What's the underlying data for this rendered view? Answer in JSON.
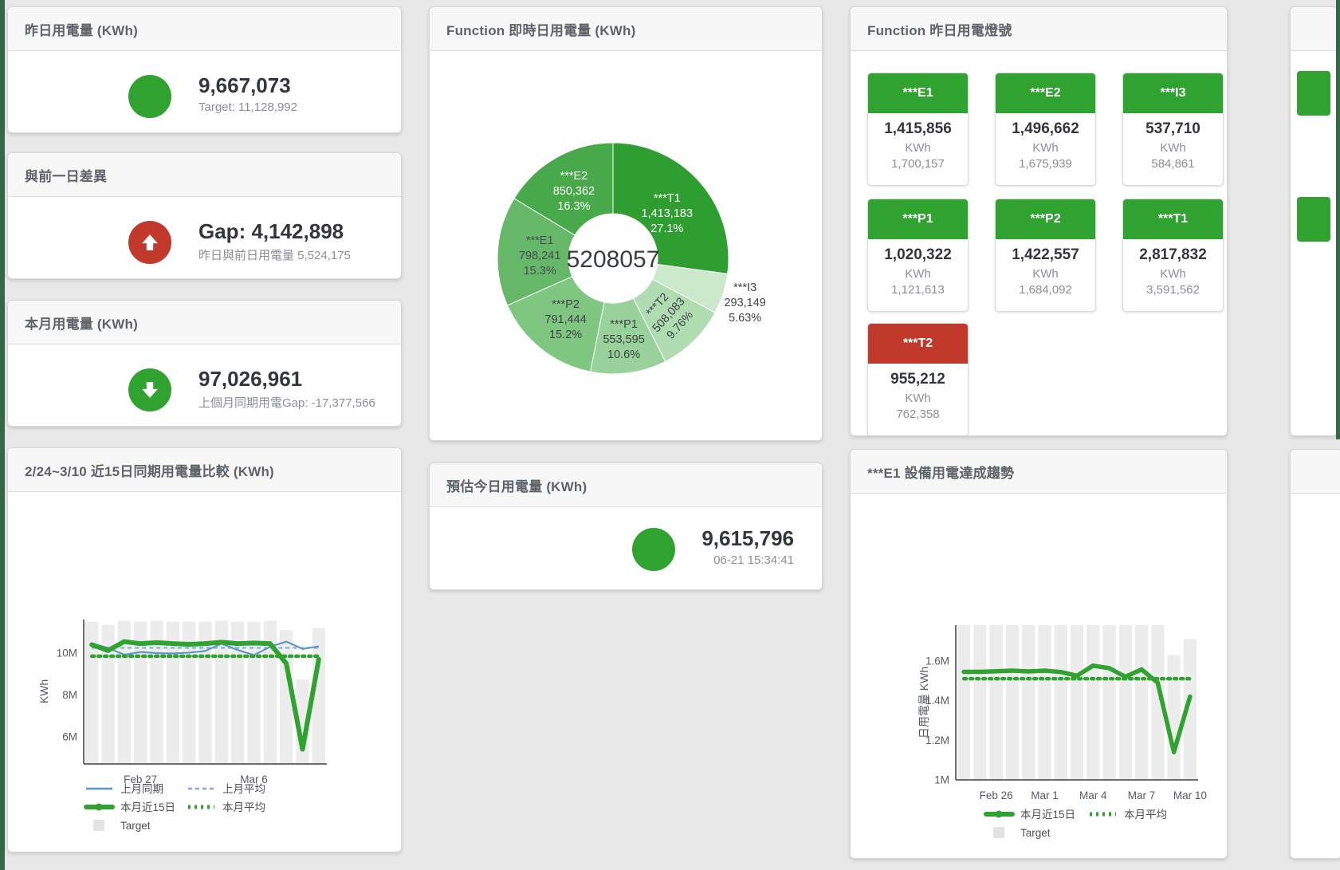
{
  "colors": {
    "page_bg": "#e8e8e8",
    "edge_green": "#356844",
    "card_border": "#d8d8d8",
    "header_bg": "#f7f7f8",
    "title_text": "#5e6269",
    "value_text": "#33363c",
    "sub_text": "#8b8e96",
    "green": "#2fa22f",
    "red": "#c0392b",
    "bar_gray": "#ececec",
    "blue_line": "#5f94c9",
    "blue_dash": "#7aaede",
    "axis": "#3f3f3f",
    "tick_text": "#565a61",
    "legend_text": "#4b4f55"
  },
  "stat_cards": {
    "yesterday": {
      "title": "昨日用電量 (KWh)",
      "value": "9,667,073",
      "subtext": "Target: 11,128,992",
      "indicator": "circle-icon",
      "status": "green"
    },
    "gap": {
      "title": "與前一日差異",
      "value": "Gap: 4,142,898",
      "subtext": "昨日與前日用電量 5,524,175",
      "indicator": "arrow-up-icon",
      "status": "red"
    },
    "month": {
      "title": "本月用電量 (KWh)",
      "value": "97,026,961",
      "subtext": "上個月同期用電Gap: -17,377,566",
      "indicator": "arrow-down-icon",
      "status": "green"
    },
    "estimate": {
      "title": "預估今日用電量 (KWh)",
      "value": "9,615,796",
      "subtext": "06-21 15:34:41",
      "indicator": "circle-icon",
      "status": "green"
    }
  },
  "lights": {
    "title": "Function 昨日用電燈號",
    "unit": "KWh",
    "tiles": [
      {
        "name": "***E1",
        "value": "1,415,856",
        "unit": "KWh",
        "target": "1,700,157",
        "status": "green"
      },
      {
        "name": "***E2",
        "value": "1,496,662",
        "unit": "KWh",
        "target": "1,675,939",
        "status": "green"
      },
      {
        "name": "***I3",
        "value": "537,710",
        "unit": "KWh",
        "target": "584,861",
        "status": "green"
      },
      {
        "name": "***P1",
        "value": "1,020,322",
        "unit": "KWh",
        "target": "1,121,613",
        "status": "green"
      },
      {
        "name": "***P2",
        "value": "1,422,557",
        "unit": "KWh",
        "target": "1,684,092",
        "status": "green"
      },
      {
        "name": "***T1",
        "value": "2,817,832",
        "unit": "KWh",
        "target": "3,591,562",
        "status": "green"
      },
      {
        "name": "***T2",
        "value": "955,212",
        "unit": "KWh",
        "target": "762,358",
        "status": "red"
      }
    ]
  },
  "chart_data": [
    {
      "id": "realtime-donut",
      "type": "pie",
      "title": "Function 即時日用電量 (KWh)",
      "center_total": "5208057",
      "slices": [
        {
          "name": "***T1",
          "value": 1413183,
          "value_label": "1,413,183",
          "pct_label": "27.1%",
          "color": "#2f9e31",
          "label_color": "#ffffff",
          "label_r": 90
        },
        {
          "name": "***I3",
          "value": 293149,
          "value_label": "293,149",
          "pct_label": "5.63%",
          "color": "#cbe8cb",
          "label_color": "#3f4348",
          "label_r": 174,
          "outside": true
        },
        {
          "name": "***T2",
          "value": 508083,
          "value_label": "508,083",
          "pct_label": "9.76%",
          "color": "#afdcb0",
          "label_color": "#3f4348",
          "label_r": 97,
          "rotate": -48
        },
        {
          "name": "***P1",
          "value": 553595,
          "value_label": "553,595",
          "pct_label": "10.6%",
          "color": "#98d199",
          "label_color": "#3f4348",
          "label_r": 100
        },
        {
          "name": "***P2",
          "value": 791444,
          "value_label": "791,444",
          "pct_label": "15.2%",
          "color": "#7fc681",
          "label_color": "#3f4348",
          "label_r": 95
        },
        {
          "name": "***E1",
          "value": 798241,
          "value_label": "798,241",
          "pct_label": "15.3%",
          "color": "#65b867",
          "label_color": "#4a4e53",
          "label_r": 92
        },
        {
          "name": "***E2",
          "value": 850362,
          "value_label": "850,362",
          "pct_label": "16.3%",
          "color": "#48a94a",
          "label_color": "#ffffff",
          "label_r": 100
        }
      ]
    },
    {
      "id": "compare-15day",
      "type": "bar+line",
      "title": "2/24~3/10 近15日同期用電量比較 (KWh)",
      "ylabel": "KWh",
      "ylim": [
        4.7,
        11.6
      ],
      "yticks": [
        {
          "v": 6,
          "label": "6M"
        },
        {
          "v": 8,
          "label": "8M"
        },
        {
          "v": 10,
          "label": "10M"
        }
      ],
      "xticks": [
        {
          "i": 3,
          "label": "Feb 27"
        },
        {
          "i": 10,
          "label": "Mar 6"
        }
      ],
      "n": 15,
      "series": [
        {
          "name": "Target",
          "kind": "bar",
          "color": "#ececec",
          "values": [
            11.5,
            11.35,
            11.55,
            11.5,
            11.55,
            11.5,
            11.5,
            11.5,
            11.55,
            11.5,
            11.5,
            11.55,
            11.1,
            8.75,
            11.2
          ]
        },
        {
          "name": "上月平均",
          "kind": "line",
          "color": "#7aaede",
          "width": 2.2,
          "dash": "5 4",
          "const": 10.25
        },
        {
          "name": "上月同期",
          "kind": "line",
          "color": "#5f94c9",
          "width": 2.2,
          "values": [
            10.45,
            10.25,
            9.92,
            10.05,
            10.0,
            9.98,
            10.02,
            10.1,
            10.45,
            10.15,
            9.9,
            10.3,
            10.55,
            10.2,
            10.32
          ]
        },
        {
          "name": "本月平均",
          "kind": "line",
          "color": "#2fa22f",
          "width": 4.5,
          "dash": "3 5",
          "const": 9.85
        },
        {
          "name": "本月近15日",
          "kind": "line",
          "color": "#2fa22f",
          "width": 6,
          "values": [
            10.4,
            10.12,
            10.55,
            10.45,
            10.5,
            10.45,
            10.42,
            10.45,
            10.52,
            10.45,
            10.48,
            10.45,
            9.5,
            5.4,
            9.7
          ]
        }
      ],
      "legend": [
        [
          {
            "label": "上月同期",
            "kind": "blue-line"
          },
          {
            "label": "上月平均",
            "kind": "blue-dash"
          }
        ],
        [
          {
            "label": "本月近15日",
            "kind": "green-thick"
          },
          {
            "label": "本月平均",
            "kind": "green-dots"
          }
        ],
        [
          {
            "label": "Target",
            "kind": "gray-square"
          }
        ]
      ]
    },
    {
      "id": "e1-trend",
      "type": "bar+line",
      "title": "***E1 設備用電達成趨勢",
      "ylabel": "日用電量 KWh",
      "ylim": [
        1.0,
        1.78
      ],
      "yticks": [
        {
          "v": 1,
          "label": "1M"
        },
        {
          "v": 1.2,
          "label": "1.2M"
        },
        {
          "v": 1.4,
          "label": "1.4M"
        },
        {
          "v": 1.6,
          "label": "1.6M"
        }
      ],
      "xticks": [
        {
          "i": 2,
          "label": "Feb 26"
        },
        {
          "i": 5,
          "label": "Mar 1"
        },
        {
          "i": 8,
          "label": "Mar 4"
        },
        {
          "i": 11,
          "label": "Mar 7"
        },
        {
          "i": 14,
          "label": "Mar 10"
        }
      ],
      "n": 15,
      "series": [
        {
          "name": "Target",
          "kind": "bar",
          "color": "#ececec",
          "values": [
            1.78,
            1.78,
            1.78,
            1.78,
            1.78,
            1.78,
            1.78,
            1.78,
            1.78,
            1.78,
            1.78,
            1.78,
            1.78,
            1.63,
            1.71
          ]
        },
        {
          "name": "本月平均",
          "kind": "line",
          "color": "#2fa22f",
          "width": 4.5,
          "dash": "3 5",
          "const": 1.51
        },
        {
          "name": "本月近15日",
          "kind": "line",
          "color": "#2fa22f",
          "width": 5.5,
          "values": [
            1.545,
            1.545,
            1.548,
            1.551,
            1.547,
            1.551,
            1.544,
            1.525,
            1.576,
            1.563,
            1.52,
            1.557,
            1.49,
            1.14,
            1.42
          ]
        }
      ],
      "legend": [
        [
          {
            "label": "本月近15日",
            "kind": "green-thick"
          },
          {
            "label": "本月平均",
            "kind": "green-dots"
          }
        ],
        [
          {
            "label": "Target",
            "kind": "gray-square"
          }
        ]
      ]
    }
  ]
}
